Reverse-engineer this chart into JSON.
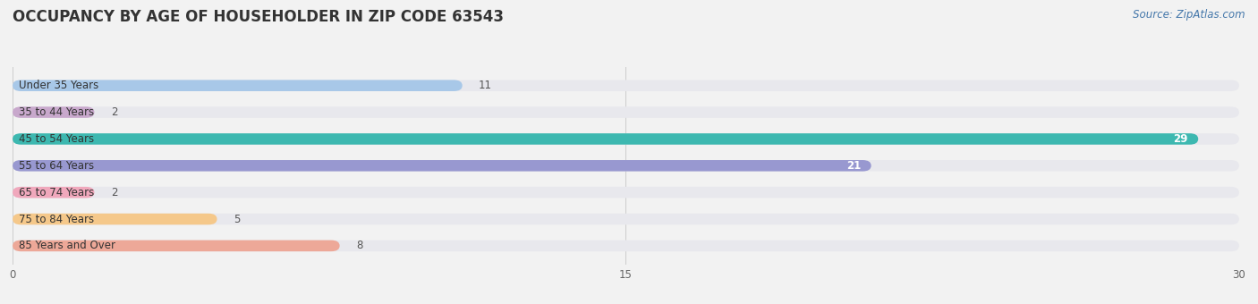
{
  "title": "OCCUPANCY BY AGE OF HOUSEHOLDER IN ZIP CODE 63543",
  "source": "Source: ZipAtlas.com",
  "categories": [
    "Under 35 Years",
    "35 to 44 Years",
    "45 to 54 Years",
    "55 to 64 Years",
    "65 to 74 Years",
    "75 to 84 Years",
    "85 Years and Over"
  ],
  "values": [
    11,
    2,
    29,
    21,
    2,
    5,
    8
  ],
  "bar_colors": [
    "#a8c8e8",
    "#c8a8cc",
    "#3db8b0",
    "#9898d0",
    "#f0a8bc",
    "#f5c88a",
    "#eda898"
  ],
  "bg_color": "#f2f2f2",
  "bar_bg_color": "#e8e8ed",
  "xlim": [
    0,
    30
  ],
  "xticks": [
    0,
    15,
    30
  ],
  "title_fontsize": 12,
  "label_fontsize": 8.5,
  "value_fontsize": 8.5,
  "source_fontsize": 8.5
}
